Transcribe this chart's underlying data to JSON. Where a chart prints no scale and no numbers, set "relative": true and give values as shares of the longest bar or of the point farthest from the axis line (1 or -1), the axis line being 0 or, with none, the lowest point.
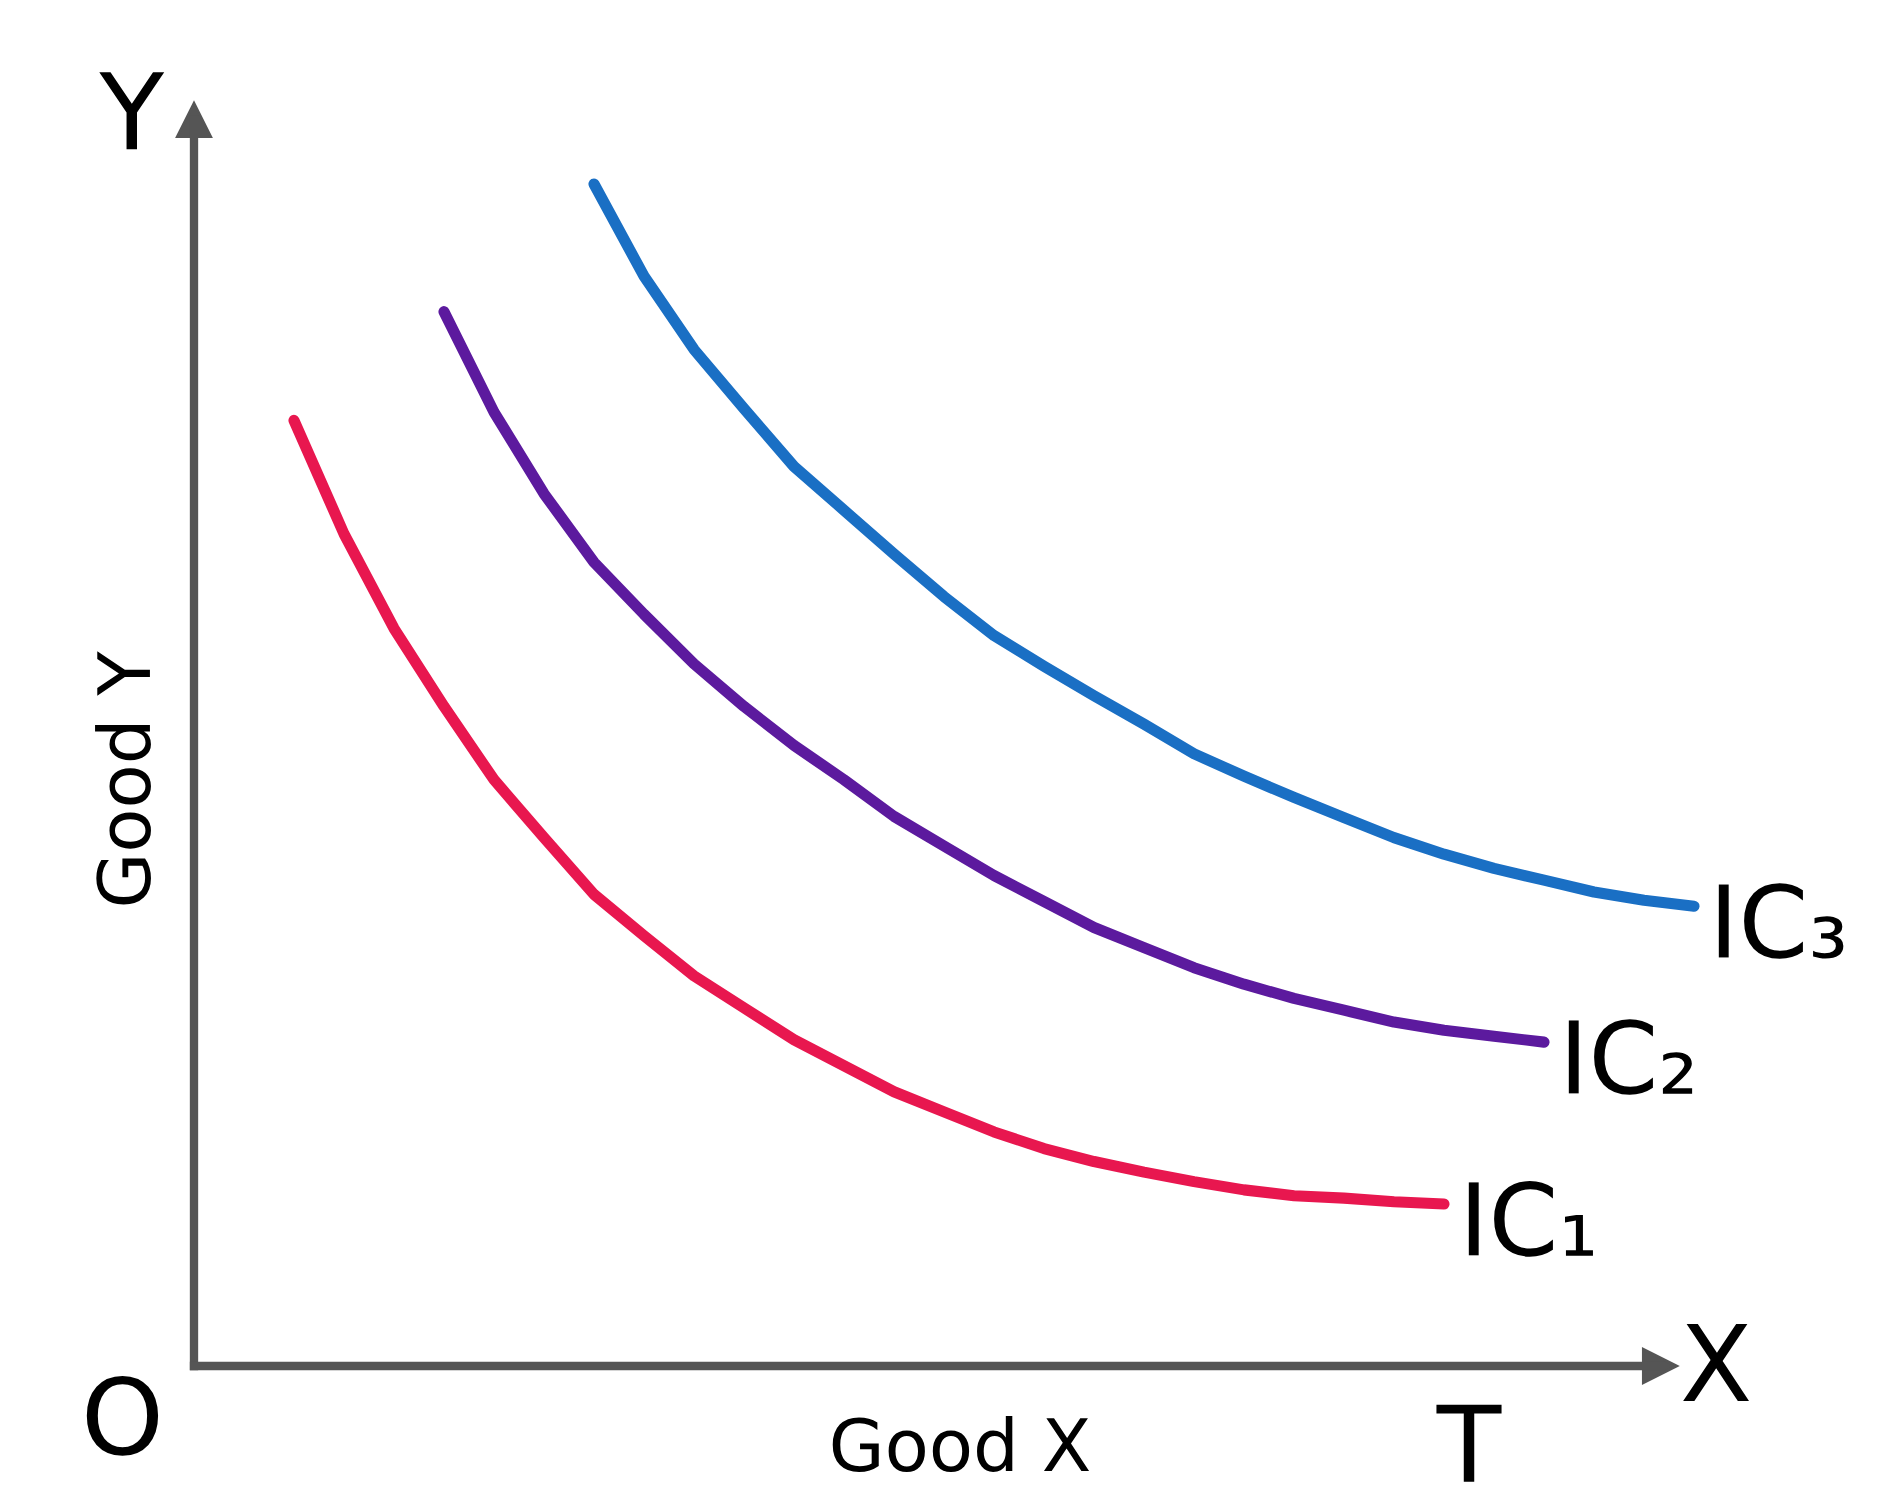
{
  "chart_data": {
    "type": "line",
    "relative": true,
    "xlabel": "Good X",
    "ylabel": "Good Y",
    "tick_labels": false,
    "line_style": "solid",
    "annotations": [
      "O",
      "T",
      "Y",
      "X"
    ],
    "categories": [
      null,
      null,
      null,
      null,
      null,
      null,
      null,
      null,
      null,
      null,
      null,
      null,
      null,
      null,
      null,
      null,
      null,
      null,
      null,
      null,
      null,
      null,
      null,
      null,
      null,
      null,
      null,
      null,
      null,
      null,
      null
    ],
    "series": [
      {
        "name": "IC₁",
        "color": "#e8174f",
        "values": [
          null,
          null,
          0.8,
          0.704,
          0.624,
          0.558,
          0.496,
          0.447,
          0.399,
          0.364,
          0.33,
          0.303,
          0.276,
          0.254,
          0.232,
          0.215,
          0.198,
          0.184,
          0.173,
          0.164,
          0.156,
          0.149,
          0.144,
          0.142,
          0.139,
          0.137,
          null,
          null,
          null,
          null,
          null
        ]
      },
      {
        "name": "IC₂",
        "color": "#5c1a9e",
        "values": [
          null,
          null,
          null,
          null,
          null,
          0.892,
          0.807,
          0.738,
          0.68,
          0.636,
          0.594,
          0.558,
          0.525,
          0.496,
          0.465,
          0.44,
          0.415,
          0.393,
          0.371,
          0.354,
          0.337,
          0.323,
          0.311,
          0.301,
          0.291,
          0.284,
          0.279,
          0.274,
          null,
          null,
          null
        ]
      },
      {
        "name": "IC₃",
        "color": "#1a6fc4",
        "values": [
          null,
          null,
          null,
          null,
          null,
          null,
          null,
          null,
          1,
          0.922,
          0.86,
          0.81,
          0.761,
          0.724,
          0.687,
          0.651,
          0.618,
          0.592,
          0.567,
          0.543,
          0.518,
          0.499,
          0.481,
          0.464,
          0.447,
          0.433,
          0.421,
          0.411,
          0.401,
          0.394,
          0.389
        ]
      }
    ]
  }
}
